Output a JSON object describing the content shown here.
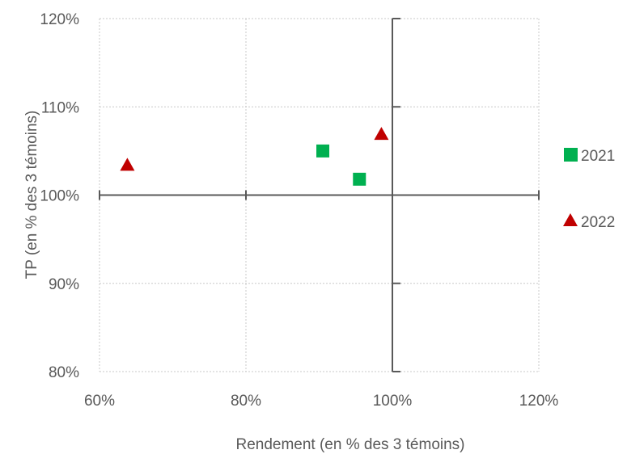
{
  "chart_data": {
    "type": "scatter",
    "xlabel": "Rendement (en % des 3 témoins)",
    "ylabel": "TP (en % des 3 témoins)",
    "xlim": [
      0.6,
      1.2
    ],
    "ylim": [
      0.8,
      1.2
    ],
    "x_ticks": [
      0.6,
      0.8,
      1.0,
      1.2
    ],
    "y_ticks": [
      0.8,
      0.9,
      1.0,
      1.1,
      1.2
    ],
    "x_tick_labels": [
      "60%",
      "80%",
      "100%",
      "120%"
    ],
    "y_tick_labels": [
      "80%",
      "90%",
      "100%",
      "110%",
      "120%"
    ],
    "grid": true,
    "crosshair_at": {
      "x": 1.0,
      "y": 1.0
    },
    "legend_position": "right",
    "series": [
      {
        "name": "2021",
        "marker": "square",
        "color": "#00B050",
        "points": [
          {
            "x": 0.905,
            "y": 1.05
          },
          {
            "x": 0.955,
            "y": 1.018
          }
        ]
      },
      {
        "name": "2022",
        "marker": "triangle",
        "color": "#C00000",
        "points": [
          {
            "x": 0.638,
            "y": 1.034
          },
          {
            "x": 0.985,
            "y": 1.069
          }
        ]
      }
    ]
  }
}
